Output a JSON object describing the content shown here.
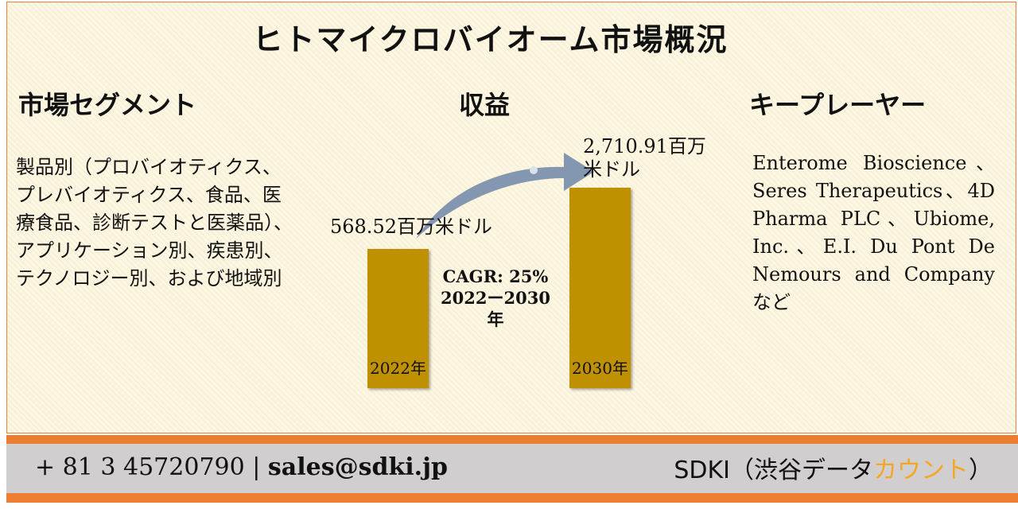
{
  "title": "ヒトマイクロバイオーム市場概況",
  "segment": {
    "heading": "市場セグメント",
    "text": "製品別（プロバイオティクス、プレバイオティクス、食品、医療食品、診断テストと医薬品）、アプリケーション別、疾患別、テクノロジー別、および地域別"
  },
  "revenue": {
    "heading": "収益",
    "bars": [
      {
        "year": "2022年",
        "value_label": "568.52百万米ドル",
        "value": 568.52
      },
      {
        "year": "2030年",
        "value_label": "2,710.91百万米ドル",
        "value": 2710.91
      }
    ],
    "cagr": "CAGR: 25%",
    "period": "2022ー2030年"
  },
  "players": {
    "heading": "キープレーヤー",
    "text": "Enterome Bioscience、Seres Therapeutics、4D Pharma PLC、Ubiome, Inc.、E.I. Du Pont De Nemours and Companyなど"
  },
  "footer": {
    "phone": "+ 81 3 45720790",
    "separator": "|",
    "email": "sales@sdki.jp",
    "brand_prefix": "SDKI（渋谷データ",
    "brand_accent": "カウント",
    "brand_suffix": "）"
  },
  "colors": {
    "bar": "#bf9000",
    "arrow": "#8497b0",
    "orange_band": "#ed7d31",
    "gray_band": "#d0cece",
    "brand_accent": "#f5a623"
  }
}
